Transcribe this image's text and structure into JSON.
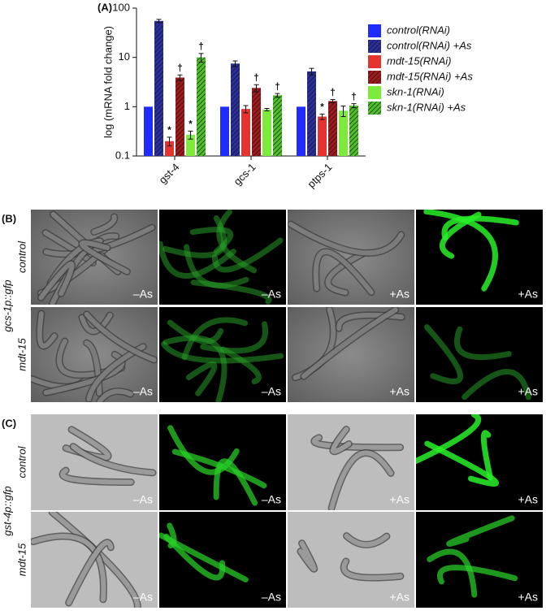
{
  "chart_data": {
    "type": "bar",
    "panel_label": "(A)",
    "y_label": "log (mRNA fold change)",
    "log_scale": true,
    "categories": [
      "gst-4",
      "gcs-1",
      "ptps-1"
    ],
    "ylim": [
      0.1,
      100
    ],
    "yticks": [
      0.1,
      1,
      10,
      100
    ],
    "legend": "right",
    "series": [
      {
        "name": "control(RNAi)",
        "color": "#1f2bff",
        "hatched": false,
        "values": [
          1,
          1,
          1
        ]
      },
      {
        "name": "control(RNAi) +As",
        "color": "#2a2f9e",
        "hatched": true,
        "values": [
          55,
          7.5,
          5.2
        ],
        "errors": [
          4,
          1,
          0.8
        ]
      },
      {
        "name": "mdt-15(RNAi)",
        "color": "#e5332f",
        "hatched": false,
        "values": [
          0.2,
          0.9,
          0.63
        ],
        "errors": [
          0.04,
          0.15,
          0.08
        ],
        "annotations": [
          "*",
          null,
          "*"
        ]
      },
      {
        "name": "mdt-15(RNAi) +As",
        "color": "#9e1a1c",
        "hatched": true,
        "values": [
          3.9,
          2.4,
          1.3
        ],
        "errors": [
          0.5,
          0.4,
          0.1
        ],
        "annotations": [
          "†",
          "†",
          "†"
        ]
      },
      {
        "name": "skn-1(RNAi)",
        "color": "#7deb3c",
        "hatched": false,
        "values": [
          0.27,
          0.87,
          0.83
        ],
        "errors": [
          0.05,
          0.05,
          0.2
        ],
        "annotations": [
          "*",
          null,
          null
        ]
      },
      {
        "name": "skn-1(RNAi) +As",
        "color": "#4fbf2a",
        "hatched": true,
        "values": [
          10,
          1.7,
          1.05
        ],
        "errors": [
          2,
          0.15,
          0.1
        ],
        "annotations": [
          "†",
          "†",
          "†"
        ]
      }
    ]
  },
  "panels": [
    {
      "label": "(B)",
      "reporter": "gcs-1p::gfp",
      "rows": [
        {
          "label": "control",
          "captions": [
            "–As",
            "–As",
            "+As",
            "+As"
          ]
        },
        {
          "label": "mdt-15",
          "captions": [
            "–As",
            "–As",
            "+As",
            "+As"
          ]
        }
      ]
    },
    {
      "label": "(C)",
      "reporter": "gst-4p::gfp",
      "rows": [
        {
          "label": "control",
          "captions": [
            "–As",
            "–As",
            "+As",
            "+As"
          ]
        },
        {
          "label": "mdt-15",
          "captions": [
            "–As",
            "–As",
            "+As",
            "+As"
          ]
        }
      ]
    }
  ]
}
